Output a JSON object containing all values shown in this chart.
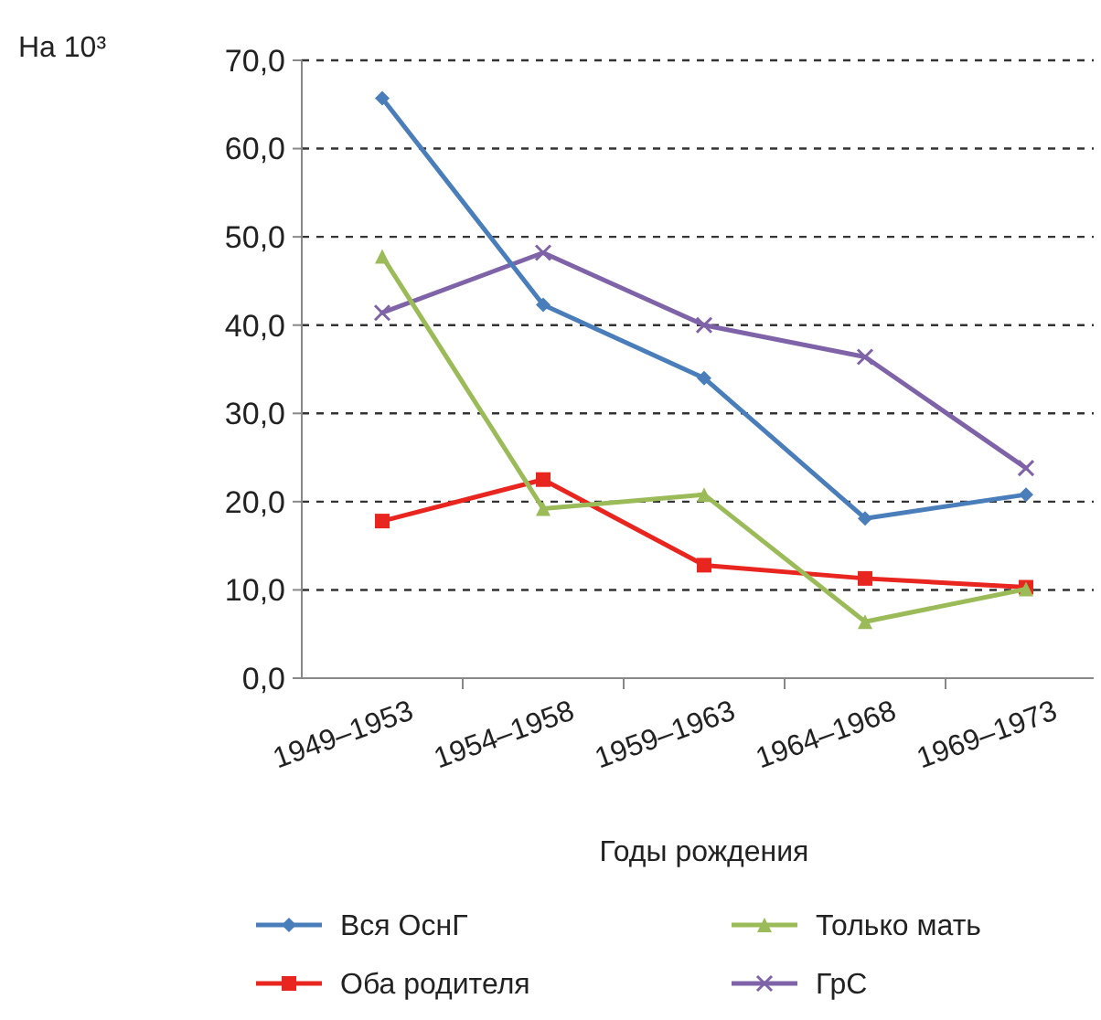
{
  "chart_data": {
    "type": "line",
    "ylabel": "На 10³",
    "xlabel": "Годы рождения",
    "categories": [
      "1949–1953",
      "1954–1958",
      "1959–1963",
      "1964–1968",
      "1969–1973"
    ],
    "ylim": [
      0,
      70
    ],
    "yticks": [
      {
        "value": 0,
        "label": "0,0"
      },
      {
        "value": 10,
        "label": "10,0"
      },
      {
        "value": 20,
        "label": "20,0"
      },
      {
        "value": 30,
        "label": "30,0"
      },
      {
        "value": 40,
        "label": "40,0"
      },
      {
        "value": 50,
        "label": "50,0"
      },
      {
        "value": 60,
        "label": "60,0"
      },
      {
        "value": 70,
        "label": "70,0"
      }
    ],
    "grid": "y",
    "legend": "bottom",
    "series": [
      {
        "name": "Вся ОснГ",
        "color": "#4a7ebb",
        "marker": "diamond",
        "values": [
          65.7,
          42.3,
          34.0,
          18.1,
          20.8
        ]
      },
      {
        "name": "Только мать",
        "color": "#9bbb59",
        "marker": "triangle",
        "values": [
          47.8,
          19.2,
          20.8,
          6.4,
          10.1
        ]
      },
      {
        "name": "Оба родителя",
        "color": "#e8251f",
        "marker": "square",
        "values": [
          17.8,
          22.5,
          12.8,
          11.3,
          10.3
        ]
      },
      {
        "name": "ГрС",
        "color": "#7f63a8",
        "marker": "cross",
        "values": [
          41.4,
          48.2,
          40.0,
          36.4,
          23.8
        ]
      }
    ]
  }
}
